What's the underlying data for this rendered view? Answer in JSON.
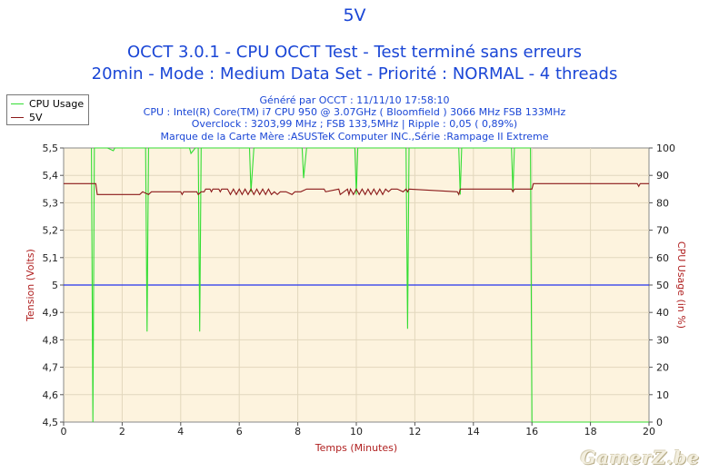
{
  "header": {
    "title": "5V",
    "line2": "OCCT 3.0.1 - CPU OCCT Test - Test terminé sans erreurs",
    "line3": "20min - Mode : Medium Data Set - Priorité : NORMAL - 4 threads"
  },
  "info": {
    "generated": "Généré par OCCT : 11/11/10 17:58:10",
    "cpu": "CPU : Intel(R) Core(TM) i7 CPU 950 @ 3.07GHz ( Bloomfield ) 3066 MHz FSB 133MHz",
    "overclock": "Overclock : 3203,99 MHz ; FSB 133,5MHz | Ripple : 0,05 ( 0,89%)",
    "motherboard": "Marque de la Carte Mère :ASUSTeK Computer INC.,Série :Rampage II Extreme"
  },
  "watermark": "GamerZ.be",
  "colors": {
    "cpu_usage": "#33dd33",
    "voltage": "#8b1a1a",
    "reference": "#2233ee",
    "plot_bg": "#fdf3de",
    "text_blue": "#1a46d6",
    "text_red": "#b02020"
  },
  "chart_data": {
    "type": "line",
    "xlabel": "Temps (Minutes)",
    "ylabel": "Tension (Volts)",
    "y2label": "CPU Usage (in %)",
    "xlim": [
      0,
      20
    ],
    "ylim": [
      4.5,
      5.5
    ],
    "y2lim": [
      0,
      100
    ],
    "x_ticks": [
      "0",
      "2",
      "4",
      "6",
      "8",
      "10",
      "12",
      "14",
      "16",
      "18",
      "20"
    ],
    "y_ticks": [
      "4,5",
      "4,6",
      "4,7",
      "4,8",
      "4,9",
      "5",
      "5,1",
      "5,2",
      "5,3",
      "5,4",
      "5,5"
    ],
    "y2_ticks": [
      "0",
      "10",
      "20",
      "30",
      "40",
      "50",
      "60",
      "70",
      "80",
      "90",
      "100"
    ],
    "legend": {
      "position": "top-left",
      "entries": [
        "CPU Usage",
        "5V"
      ]
    },
    "reference_line": {
      "axis": "left",
      "value": 5.0
    },
    "series": [
      {
        "name": "CPU Usage",
        "axis": "right",
        "x": [
          0.95,
          1.0,
          1.05,
          1.1,
          1.5,
          1.7,
          1.75,
          2.8,
          2.85,
          2.9,
          3.0,
          4.3,
          4.35,
          4.5,
          4.6,
          4.65,
          4.7,
          6.35,
          6.4,
          6.5,
          8.15,
          8.2,
          8.3,
          9.95,
          10.0,
          10.05,
          11.7,
          11.75,
          11.8,
          13.5,
          13.55,
          13.6,
          15.3,
          15.35,
          15.4,
          15.95,
          16.0,
          16.05,
          16.1,
          20.0
        ],
        "y": [
          100,
          0,
          100,
          100,
          100,
          99,
          100,
          100,
          33,
          100,
          100,
          100,
          98,
          100,
          100,
          33,
          100,
          100,
          84,
          100,
          100,
          89,
          100,
          100,
          83,
          100,
          100,
          34,
          100,
          100,
          83,
          100,
          100,
          84,
          100,
          100,
          0,
          0,
          0,
          0
        ]
      },
      {
        "name": "5V",
        "axis": "left",
        "x": [
          0,
          1.1,
          1.15,
          2.6,
          2.7,
          2.9,
          3.0,
          4.0,
          4.05,
          4.1,
          4.55,
          4.6,
          4.7,
          4.8,
          4.85,
          5.0,
          5.05,
          5.1,
          5.3,
          5.35,
          5.4,
          5.6,
          5.65,
          5.7,
          5.8,
          5.9,
          6.0,
          6.1,
          6.2,
          6.3,
          6.4,
          6.5,
          6.6,
          6.7,
          6.8,
          6.9,
          7.0,
          7.1,
          7.2,
          7.3,
          7.4,
          7.6,
          7.8,
          7.9,
          8.1,
          8.3,
          8.4,
          8.5,
          8.9,
          8.95,
          9.4,
          9.45,
          9.7,
          9.75,
          9.8,
          9.9,
          10.0,
          10.1,
          10.2,
          10.3,
          10.4,
          10.5,
          10.6,
          10.7,
          10.8,
          10.9,
          11.0,
          11.1,
          11.2,
          11.3,
          11.4,
          11.6,
          11.7,
          11.75,
          11.8,
          13.45,
          13.5,
          13.55,
          15.3,
          15.35,
          15.4,
          16.0,
          16.05,
          19.6,
          19.65,
          19.7,
          20.0
        ],
        "y": [
          5.37,
          5.37,
          5.33,
          5.33,
          5.34,
          5.33,
          5.34,
          5.34,
          5.33,
          5.34,
          5.34,
          5.33,
          5.34,
          5.34,
          5.35,
          5.35,
          5.34,
          5.35,
          5.35,
          5.34,
          5.35,
          5.35,
          5.34,
          5.33,
          5.35,
          5.33,
          5.35,
          5.33,
          5.35,
          5.33,
          5.35,
          5.33,
          5.35,
          5.33,
          5.35,
          5.33,
          5.35,
          5.33,
          5.34,
          5.33,
          5.34,
          5.34,
          5.33,
          5.34,
          5.34,
          5.35,
          5.35,
          5.35,
          5.35,
          5.34,
          5.35,
          5.33,
          5.35,
          5.33,
          5.35,
          5.33,
          5.35,
          5.33,
          5.35,
          5.33,
          5.35,
          5.33,
          5.35,
          5.33,
          5.35,
          5.33,
          5.35,
          5.34,
          5.35,
          5.35,
          5.35,
          5.34,
          5.35,
          5.34,
          5.35,
          5.34,
          5.33,
          5.35,
          5.35,
          5.34,
          5.35,
          5.35,
          5.37,
          5.37,
          5.36,
          5.37,
          5.37
        ]
      }
    ]
  }
}
